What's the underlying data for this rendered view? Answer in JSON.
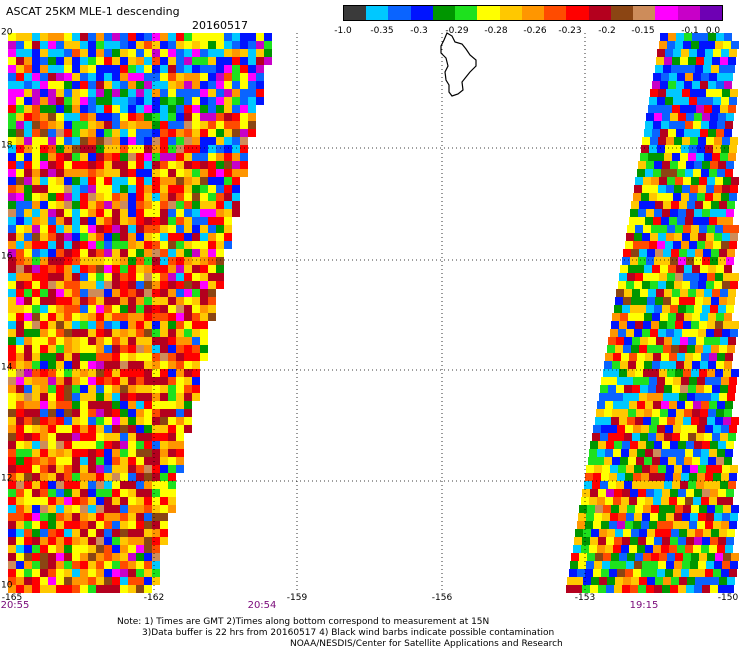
{
  "title": "ASCAT 25KM MLE-1 descending",
  "date": "20160517",
  "colorbar": {
    "colors": [
      "#3a3a3a",
      "#00c8ff",
      "#0a64ff",
      "#0014ff",
      "#009600",
      "#1ee11e",
      "#ffff00",
      "#ffc800",
      "#ff9600",
      "#ff4b00",
      "#ff0000",
      "#b4001e",
      "#8b4513",
      "#cd8c5a",
      "#ff00ff",
      "#c800c8",
      "#6e00b4"
    ],
    "labels": [
      "-1.0",
      "-0.35",
      "-0.3",
      "-0.29",
      "-0.28",
      "-0.26",
      "-0.23",
      "-0.2",
      "-0.15",
      "-0.1",
      "0.0"
    ]
  },
  "axes": {
    "x_ticks": [
      "-165",
      "-162",
      "-159",
      "-156",
      "-153",
      "-150"
    ],
    "y_ticks": [
      "20",
      "18",
      "16",
      "14",
      "12",
      "10"
    ]
  },
  "time_labels": [
    "20:55",
    "20:54",
    "19:15"
  ],
  "notes": [
    "Note: 1) Times are GMT 2)Times along bottom correspond to measurement at 15N",
    "3)Data buffer is 22 hrs from 20160517 4) Black wind barbs indicate possible contamination",
    "NOAA/NESDIS/Center for Satellite Applications and Research"
  ]
}
